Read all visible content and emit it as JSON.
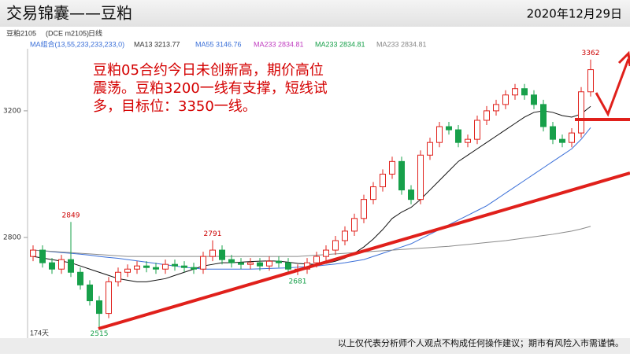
{
  "header": {
    "title": "交易锦囊——豆粕",
    "date": "2020年12月29日"
  },
  "toolbar": {
    "symbol": "豆粕2105",
    "code": "(DCE m2105)",
    "period": "日线"
  },
  "ma_labels": [
    "MA组合(13,55,233,233,233,0)",
    "MA13 3213.77",
    "MA55 3146.76",
    "MA233 2834.81",
    "MA233 2834.81",
    "MA233 2834.81"
  ],
  "note": [
    "豆粕05合约今日未创新高，期价高位",
    "震荡。豆粕3200一线有支撑，短线试",
    "多，目标位：3350一线。"
  ],
  "days_label": "174天",
  "footer": "以上仅代表分析师个人观点不构成任何操作建议；期市有风险入市需谨慎。",
  "chart_data": {
    "type": "candlestick",
    "ylim": [
      2482,
      3396
    ],
    "yticks": [
      2800,
      3200
    ],
    "up_color": "#e0201b",
    "down_color": "#17a04a",
    "open": [
      2740,
      2760,
      2720,
      2700,
      2730,
      2690,
      2650,
      2600,
      2560,
      2660,
      2690,
      2700,
      2710,
      2705,
      2700,
      2715,
      2710,
      2705,
      2700,
      2740,
      2760,
      2730,
      2720,
      2715,
      2720,
      2710,
      2725,
      2720,
      2700,
      2700,
      2720,
      2740,
      2760,
      2790,
      2820,
      2860,
      2920,
      2960,
      3000,
      3040,
      2950,
      2920,
      3060,
      3100,
      3150,
      3140,
      3100,
      3110,
      3170,
      3200,
      3220,
      3250,
      3270,
      3250,
      3220,
      3150,
      3110,
      3100,
      3130,
      3260
    ],
    "high": [
      2775,
      2775,
      2735,
      2745,
      2849,
      2705,
      2665,
      2615,
      2675,
      2705,
      2715,
      2725,
      2725,
      2720,
      2730,
      2730,
      2725,
      2720,
      2755,
      2791,
      2775,
      2745,
      2735,
      2735,
      2735,
      2740,
      2740,
      2735,
      2715,
      2735,
      2755,
      2775,
      2805,
      2835,
      2875,
      2935,
      2975,
      3015,
      3055,
      3055,
      2965,
      3075,
      3115,
      3165,
      3165,
      3155,
      3125,
      3185,
      3215,
      3235,
      3265,
      3285,
      3285,
      3265,
      3235,
      3165,
      3125,
      3145,
      3275,
      3362
    ],
    "low": [
      2725,
      2705,
      2685,
      2685,
      2675,
      2635,
      2585,
      2515,
      2545,
      2645,
      2675,
      2685,
      2690,
      2685,
      2685,
      2695,
      2690,
      2685,
      2685,
      2725,
      2715,
      2705,
      2700,
      2700,
      2695,
      2695,
      2705,
      2685,
      2681,
      2685,
      2705,
      2725,
      2745,
      2775,
      2805,
      2845,
      2905,
      2945,
      2985,
      2935,
      2905,
      2905,
      3045,
      3085,
      3125,
      3085,
      3085,
      3095,
      3155,
      3185,
      3205,
      3235,
      3235,
      3205,
      3135,
      3095,
      3085,
      3085,
      3115,
      3245
    ],
    "close": [
      2760,
      2720,
      2700,
      2730,
      2690,
      2650,
      2600,
      2560,
      2660,
      2690,
      2700,
      2710,
      2705,
      2700,
      2715,
      2710,
      2705,
      2700,
      2740,
      2760,
      2730,
      2720,
      2715,
      2720,
      2710,
      2725,
      2720,
      2700,
      2700,
      2720,
      2740,
      2760,
      2790,
      2820,
      2860,
      2920,
      2960,
      3000,
      3040,
      2950,
      2920,
      3060,
      3100,
      3150,
      3140,
      3100,
      3110,
      3170,
      3200,
      3220,
      3250,
      3270,
      3250,
      3220,
      3150,
      3110,
      3100,
      3130,
      3260,
      3330
    ],
    "high_value_labels": [
      null,
      null,
      null,
      null,
      "2849",
      null,
      null,
      null,
      null,
      null,
      null,
      null,
      null,
      null,
      null,
      null,
      null,
      null,
      null,
      "2791",
      null,
      null,
      null,
      null,
      null,
      null,
      null,
      null,
      null,
      null,
      null,
      null,
      null,
      null,
      null,
      null,
      null,
      null,
      null,
      null,
      null,
      null,
      null,
      null,
      null,
      null,
      null,
      null,
      null,
      null,
      null,
      null,
      null,
      null,
      null,
      null,
      null,
      null,
      null,
      "3362"
    ],
    "low_value_labels": [
      null,
      null,
      null,
      null,
      null,
      null,
      null,
      "2515",
      null,
      null,
      null,
      null,
      null,
      null,
      null,
      null,
      null,
      null,
      null,
      null,
      null,
      null,
      null,
      null,
      null,
      null,
      null,
      null,
      "2681",
      null,
      null,
      null,
      null,
      null,
      null,
      null,
      null,
      null,
      null,
      null,
      null,
      null,
      null,
      null,
      null,
      null,
      null,
      null,
      null,
      null,
      null,
      null,
      null,
      null,
      null,
      null,
      null,
      null,
      null,
      null
    ],
    "series": [
      {
        "name": "MA13",
        "color": "#111111",
        "values": [
          2740,
          2735,
          2730,
          2725,
          2720,
          2710,
          2700,
          2690,
          2680,
          2670,
          2665,
          2660,
          2660,
          2665,
          2670,
          2680,
          2690,
          2700,
          2710,
          2715,
          2720,
          2720,
          2722,
          2724,
          2725,
          2726,
          2725,
          2722,
          2718,
          2716,
          2715,
          2718,
          2725,
          2735,
          2750,
          2770,
          2795,
          2825,
          2860,
          2880,
          2895,
          2920,
          2950,
          2980,
          3010,
          3040,
          3060,
          3080,
          3100,
          3120,
          3140,
          3160,
          3180,
          3195,
          3200,
          3195,
          3185,
          3180,
          3190,
          3214
        ]
      },
      {
        "name": "MA55",
        "color": "#3a6fd8",
        "values": [
          2760,
          2758,
          2755,
          2752,
          2750,
          2747,
          2744,
          2740,
          2737,
          2734,
          2730,
          2726,
          2722,
          2718,
          2714,
          2710,
          2706,
          2703,
          2700,
          2700,
          2700,
          2700,
          2700,
          2700,
          2701,
          2702,
          2703,
          2704,
          2706,
          2708,
          2710,
          2713,
          2716,
          2720,
          2725,
          2730,
          2740,
          2750,
          2760,
          2770,
          2780,
          2795,
          2810,
          2825,
          2840,
          2855,
          2870,
          2885,
          2900,
          2920,
          2940,
          2960,
          2980,
          3000,
          3020,
          3040,
          3060,
          3080,
          3110,
          3147
        ]
      },
      {
        "name": "MA233",
        "color": "#8a8a8a",
        "values": [
          2760,
          2758,
          2756,
          2754,
          2752,
          2750,
          2748,
          2746,
          2744,
          2742,
          2740,
          2740,
          2740,
          2740,
          2740,
          2740,
          2740,
          2740,
          2740,
          2740,
          2740,
          2740,
          2740,
          2740,
          2740,
          2740,
          2740,
          2740,
          2740,
          2742,
          2744,
          2746,
          2748,
          2750,
          2752,
          2754,
          2756,
          2758,
          2760,
          2762,
          2764,
          2766,
          2768,
          2770,
          2772,
          2775,
          2778,
          2781,
          2784,
          2787,
          2790,
          2794,
          2798,
          2802,
          2806,
          2810,
          2815,
          2820,
          2827,
          2835
        ]
      }
    ]
  }
}
